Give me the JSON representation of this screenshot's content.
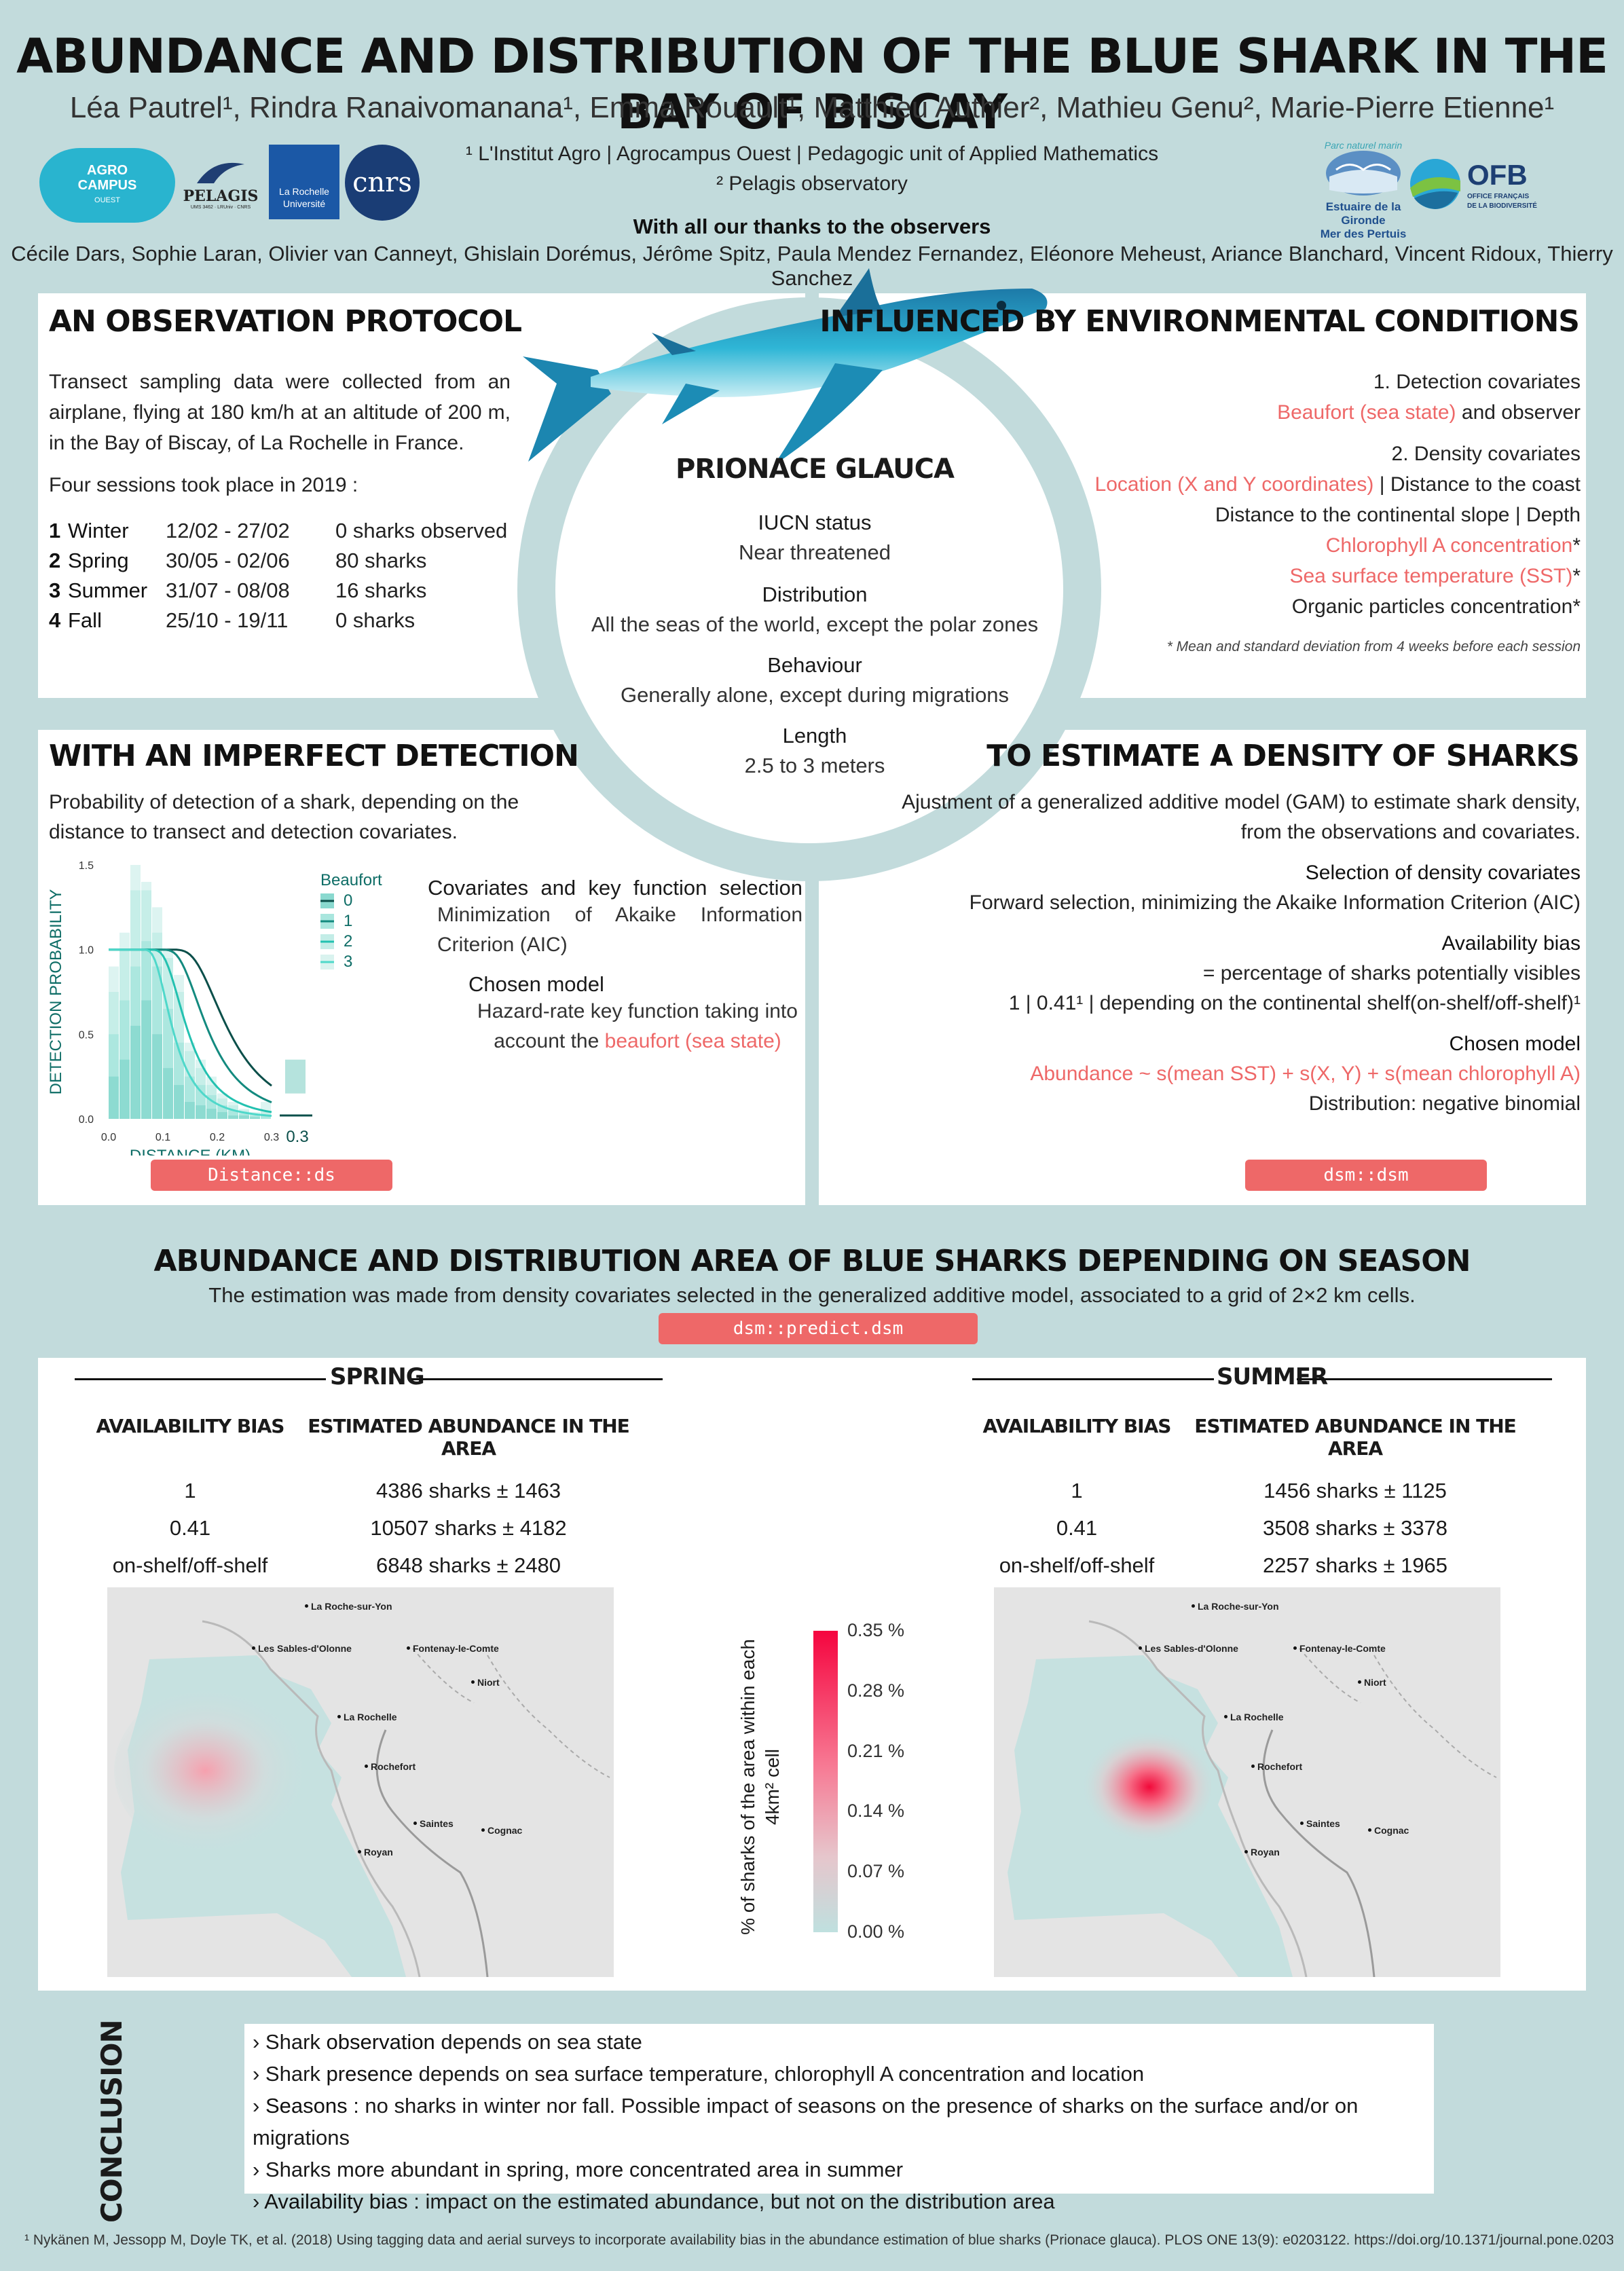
{
  "header": {
    "title": "ABUNDANCE AND DISTRIBUTION OF THE BLUE SHARK IN THE BAY OF BISCAY",
    "authors": "Léa Pautrel¹, Rindra Ranaivomanana¹, Emma Rouault¹, Matthieu Authier², Mathieu Genu², Marie-Pierre Etienne¹",
    "affiliation1": "¹ L'Institut Agro | Agrocampus Ouest | Pedagogic unit of Applied Mathematics",
    "affiliation2": "² Pelagis observatory",
    "thanks_title": "With all our thanks to the observers",
    "observers": "Cécile Dars, Sophie Laran, Olivier van Canneyt, Ghislain Dorémus, Jérôme Spitz, Paula Mendez Fernandez, Eléonore Meheust, Ariance Blanchard, Vincent Ridoux, Thierry Sanchez"
  },
  "logos": {
    "agro_line1": "AGRO",
    "agro_line2": "CAMPUS",
    "agro_line3": "OUEST",
    "pelagis": "PELAGIS",
    "pelagis_sub": "UMS 3462 · LRUniv · CNRS",
    "larochelle_line1": "La Rochelle",
    "larochelle_line2": "Université",
    "cnrs": "cnrs",
    "parc_line1": "Estuaire de la Gironde",
    "parc_line2": "Mer des Pertuis",
    "parc_arc": "Parc naturel marin",
    "ofb": "OFB",
    "ofb_sub1": "OFFICE FRANÇAIS",
    "ofb_sub2": "DE LA BIODIVERSITÉ"
  },
  "observation": {
    "title": "AN OBSERVATION PROTOCOL",
    "intro": "Transect sampling data were collected from an airplane, flying at 180 km/h at an altitude of 200 m, in the Bay of Biscay, of La Rochelle in France.",
    "sessions_intro": "Four sessions took place in 2019 :",
    "sessions": [
      {
        "num": "1",
        "name": "Winter",
        "dates": "12/02 - 27/02",
        "count": "0 sharks observed"
      },
      {
        "num": "2",
        "name": "Spring",
        "dates": "30/05 - 02/06",
        "count": "80 sharks"
      },
      {
        "num": "3",
        "name": "Summer",
        "dates": "31/07 - 08/08",
        "count": "16 sharks"
      },
      {
        "num": "4",
        "name": "Fall",
        "dates": "25/10 - 19/11",
        "count": "0 sharks"
      }
    ]
  },
  "species": {
    "name": "PRIONACE  GLAUCA",
    "iucn_label": "IUCN status",
    "iucn_value": "Near threatened",
    "distribution_label": "Distribution",
    "distribution_value": "All the seas of the world, except the polar zones",
    "behaviour_label": "Behaviour",
    "behaviour_value": "Generally alone, except during migrations",
    "length_label": "Length",
    "length_value": "2.5 to 3 meters"
  },
  "environment": {
    "title": "INFLUENCED BY ENVIRONMENTAL CONDITIONS",
    "detection_title": "1. Detection covariates",
    "detection_red": "Beaufort (sea state)",
    "detection_rest": " and observer",
    "density_title": "2. Density covariates",
    "density_line1_red": "Location (X and Y coordinates)",
    "density_line1_rest": " | Distance to the coast",
    "density_line2": "Distance to the continental slope | Depth",
    "density_line3_red": "Chlorophyll A concentration",
    "density_line4_red": "Sea surface temperature (SST)",
    "density_line5": "Organic particles concentration",
    "asterisk": "*",
    "footnote": "* Mean and standard deviation from 4 weeks before each session"
  },
  "detection": {
    "title": "WITH AN IMPERFECT DETECTION",
    "intro": "Probability of detection of a shark, depending on the distance to transect and detection covariates.",
    "cov_title": "Covariates and key function selection",
    "cov_text": "Minimization of Akaike Information Criterion (AIC)",
    "model_title": "Chosen model",
    "model_text": "Hazard-rate key function taking into account the ",
    "model_red": "beaufort (sea state)",
    "tag": "Distance::ds"
  },
  "density": {
    "title": "TO ESTIMATE A DENSITY OF SHARKS",
    "intro": "Ajustment of a generalized additive model (GAM) to estimate shark density, from the observations and covariates.",
    "sel_title": "Selection of density covariates",
    "sel_text": "Forward selection, minimizing the Akaike Information Criterion (AIC)",
    "avail_title": "Availability bias",
    "avail_text1": "= percentage of sharks potentially visibles",
    "avail_text2": "1 | 0.41¹ | depending on the continental shelf(on-shelf/off-shelf)¹",
    "model_title": "Chosen model",
    "model_red": "Abundance ~ s(mean SST) + s(X, Y) + s(mean chlorophyll A)",
    "model_dist": "Distribution: negative binomial",
    "tag": "dsm::dsm"
  },
  "abundance": {
    "title": "ABUNDANCE AND DISTRIBUTION AREA OF BLUE SHARKS DEPENDING ON SEASON",
    "subtitle": "The estimation was made from density covariates selected in the generalized additive model, associated to a grid of 2×2 km cells.",
    "tag": "dsm::predict.dsm",
    "col_bias": "AVAILABILITY BIAS",
    "col_est": "ESTIMATED ABUNDANCE IN THE AREA",
    "spring": {
      "label": "SPRING",
      "rows": [
        {
          "bias": "1",
          "est": "4386 sharks ± 1463"
        },
        {
          "bias": "0.41",
          "est": "10507 sharks ± 4182"
        },
        {
          "bias": "on-shelf/off-shelf",
          "est": "6848 sharks ± 2480"
        }
      ]
    },
    "summer": {
      "label": "SUMMER",
      "rows": [
        {
          "bias": "1",
          "est": "1456 sharks ± 1125"
        },
        {
          "bias": "0.41",
          "est": "3508 sharks ± 3378"
        },
        {
          "bias": "on-shelf/off-shelf",
          "est": "2257 sharks ± 1965"
        }
      ]
    },
    "cities": {
      "la_roche": "La Roche-sur-Yon",
      "sables": "Les Sables-d'Olonne",
      "fontenay": "Fontenay-le-Comte",
      "niort": "Niort",
      "la_rochelle": "La Rochelle",
      "rochefort": "Rochefort",
      "saintes": "Saintes",
      "cognac": "Cognac",
      "royan": "Royan"
    },
    "legend_title": "% of sharks of the area within each 4km² cell",
    "legend_ticks": [
      "0.35 %",
      "0.28 %",
      "0.21 %",
      "0.14 %",
      "0.07 %",
      "0.00 %"
    ]
  },
  "chart_data": {
    "type": "line",
    "xlabel": "DISTANCE (KM)",
    "ylabel": "DETECTION PROBABILITY",
    "xlim": [
      0,
      0.3
    ],
    "ylim": [
      0,
      1.5
    ],
    "x_ticks": [
      "0.0",
      "0.1",
      "0.2",
      "0.3"
    ],
    "y_ticks": [
      "0.0",
      "0.5",
      "1.0",
      "1.5"
    ],
    "legend_title": "Beaufort",
    "legend_entries": [
      "0",
      "1",
      "2",
      "3"
    ],
    "histogram": {
      "bin_width": 0.02,
      "bins": [
        {
          "x": 0.0,
          "values": [
            0.25,
            0.5,
            0.75,
            0.9
          ]
        },
        {
          "x": 0.02,
          "values": [
            0.35,
            0.7,
            1.0,
            1.1
          ]
        },
        {
          "x": 0.04,
          "values": [
            0.55,
            0.9,
            1.35,
            1.5
          ]
        },
        {
          "x": 0.06,
          "values": [
            0.7,
            1.05,
            1.35,
            1.4
          ]
        },
        {
          "x": 0.08,
          "values": [
            0.5,
            0.9,
            1.1,
            1.25
          ]
        },
        {
          "x": 0.1,
          "values": [
            0.3,
            0.65,
            0.95,
            1.0
          ]
        },
        {
          "x": 0.12,
          "values": [
            0.2,
            0.45,
            0.75,
            0.85
          ]
        },
        {
          "x": 0.14,
          "values": [
            0.1,
            0.25,
            0.4,
            0.45
          ]
        },
        {
          "x": 0.16,
          "values": [
            0.08,
            0.2,
            0.3,
            0.35
          ]
        },
        {
          "x": 0.18,
          "values": [
            0.06,
            0.14,
            0.2,
            0.25
          ]
        },
        {
          "x": 0.2,
          "values": [
            0.04,
            0.08,
            0.12,
            0.15
          ]
        },
        {
          "x": 0.22,
          "values": [
            0.02,
            0.05,
            0.08,
            0.1
          ]
        },
        {
          "x": 0.24,
          "values": [
            0.02,
            0.03,
            0.05,
            0.06
          ]
        },
        {
          "x": 0.26,
          "values": [
            0.01,
            0.02,
            0.03,
            0.04
          ]
        },
        {
          "x": 0.28,
          "values": [
            0.0,
            0.02,
            0.04,
            0.1
          ]
        }
      ]
    },
    "series": [
      {
        "name": "0",
        "scale": 0.205,
        "color": "#0b4f4a"
      },
      {
        "name": "1",
        "scale": 0.17,
        "color": "#138a7f"
      },
      {
        "name": "2",
        "scale": 0.135,
        "color": "#23c1b0"
      },
      {
        "name": "3",
        "scale": 0.11,
        "color": "#4fd8ca"
      }
    ],
    "shape": 4,
    "truncation_label": "0.3"
  },
  "conclusion": {
    "label": "CONCLUSION",
    "lines": [
      {
        "pre": "› Shark ",
        "bold": "observation",
        "post": " depends on sea state"
      },
      {
        "pre": "› Shark ",
        "bold": "presence",
        "post": " depends on sea surface temperature, chlorophyll A concentration and location"
      },
      {
        "pre": "› ",
        "bold": "Seasons",
        "post": " : no sharks in winter nor fall. Possible impact of seasons on the presence of sharks on the surface  and/or on migrations"
      },
      {
        "pre": "› Sharks more abundant in spring, more concentrated area in summer",
        "bold": "",
        "post": ""
      },
      {
        "pre": "› ",
        "bold": "Availability bias",
        "post": " : impact on the estimated abundance, but not on the distribution area"
      }
    ]
  },
  "footnote": "¹ Nykänen M, Jessopp M, Doyle TK, et al. (2018) Using tagging data and aerial surveys to incorporate availability bias in the abundance estimation of blue sharks (Prionace glauca). PLOS ONE 13(9): e0203122. https://doi.org/10.1371/journal.pone.0203122"
}
